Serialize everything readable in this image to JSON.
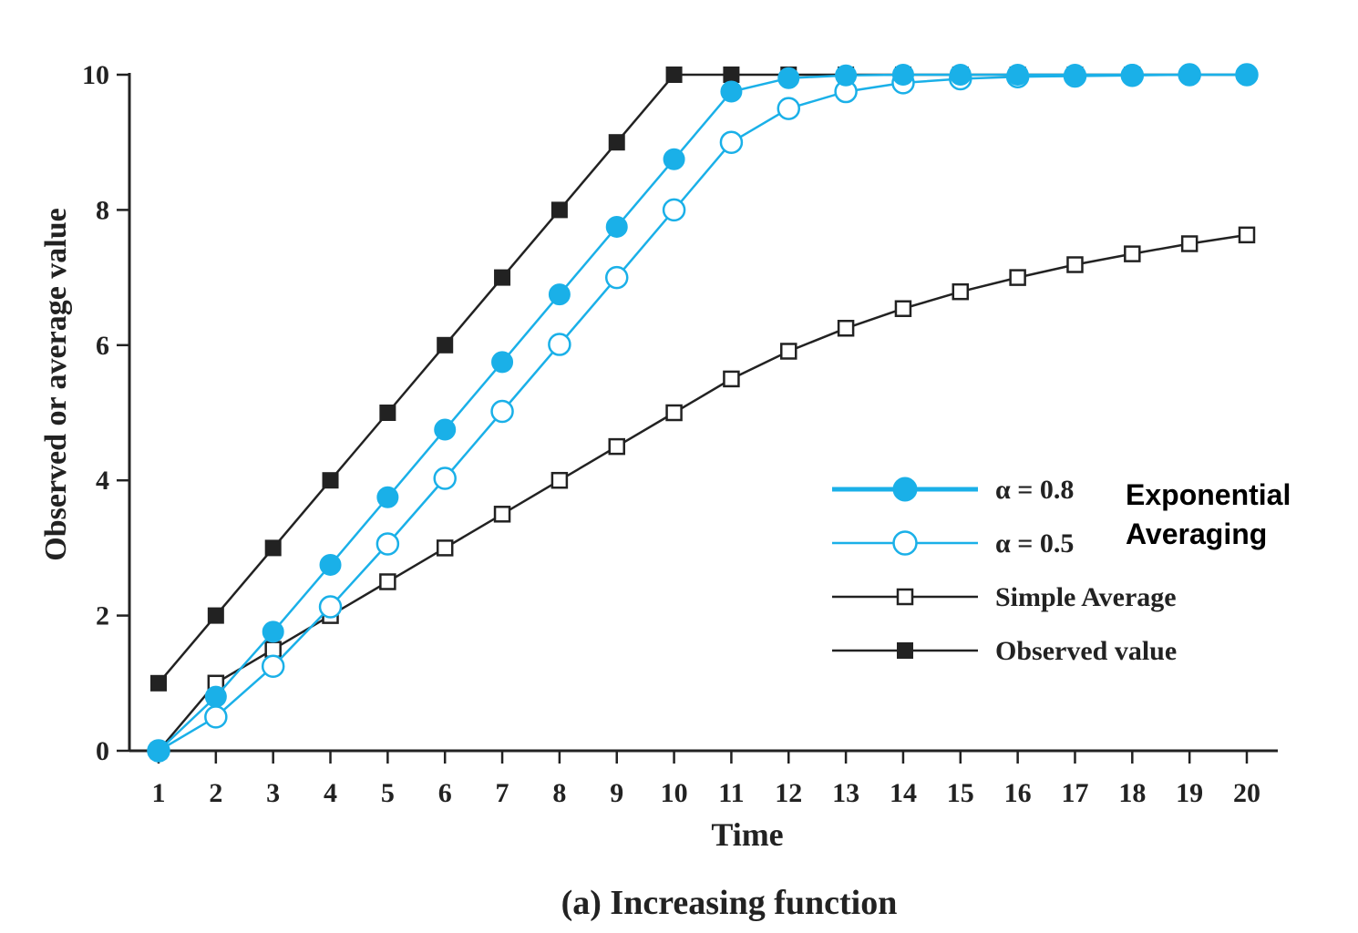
{
  "chart_data": {
    "type": "line",
    "title": "(a) Increasing function",
    "xlabel": "Time",
    "ylabel": "Observed or average value",
    "x": [
      1,
      2,
      3,
      4,
      5,
      6,
      7,
      8,
      9,
      10,
      11,
      12,
      13,
      14,
      15,
      16,
      17,
      18,
      19,
      20
    ],
    "xlim": [
      1,
      20
    ],
    "ylim": [
      0,
      10
    ],
    "yticks": [
      0,
      2,
      4,
      6,
      8,
      10
    ],
    "grid": false,
    "legend_position": "right",
    "legend_group_label": "Exponential Averaging",
    "legend_group_label_lines": [
      "Exponential",
      "Averaging"
    ],
    "series": [
      {
        "name": "α = 0.8",
        "color": "#1ab0e8",
        "marker": "filled-circle",
        "values": [
          0,
          0.8,
          1.76,
          2.75,
          3.75,
          4.75,
          5.75,
          6.75,
          7.75,
          8.75,
          9.75,
          9.95,
          9.99,
          10,
          10,
          10,
          10,
          10,
          10,
          10
        ]
      },
      {
        "name": "α = 0.5",
        "color": "#1ab0e8",
        "marker": "open-circle",
        "values": [
          0,
          0.5,
          1.25,
          2.13,
          3.06,
          4.03,
          5.02,
          6.01,
          7.0,
          8.0,
          9.0,
          9.5,
          9.75,
          9.88,
          9.94,
          9.97,
          9.98,
          9.99,
          10,
          10
        ]
      },
      {
        "name": "Simple Average",
        "color": "#222222",
        "marker": "open-square",
        "values": [
          0,
          1.0,
          1.5,
          2.0,
          2.5,
          3.0,
          3.5,
          4.0,
          4.5,
          5.0,
          5.5,
          5.91,
          6.25,
          6.54,
          6.79,
          7.0,
          7.19,
          7.35,
          7.5,
          7.63
        ]
      },
      {
        "name": "Observed value",
        "color": "#222222",
        "marker": "filled-square",
        "values": [
          1,
          2,
          3,
          4,
          5,
          6,
          7,
          8,
          9,
          10,
          10,
          10,
          10,
          10,
          10,
          10,
          10,
          10,
          10,
          10
        ]
      }
    ]
  }
}
